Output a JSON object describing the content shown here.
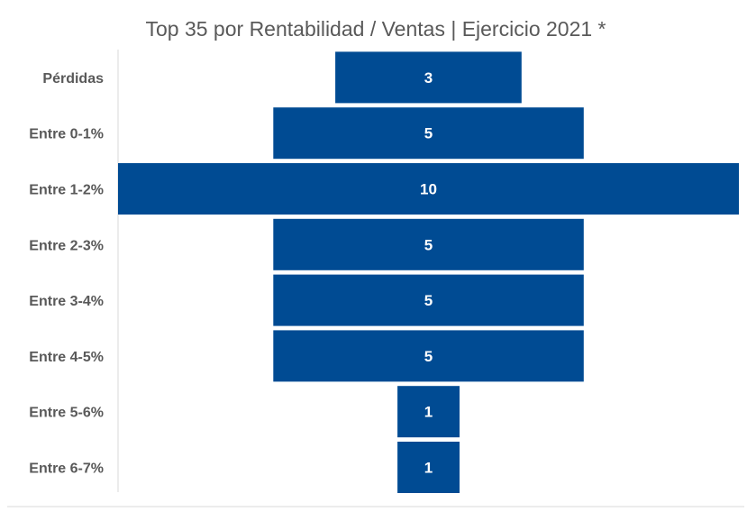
{
  "chart_data": {
    "type": "bar",
    "orientation": "horizontal",
    "style": "funnel-centered",
    "title": "Top 35 por Rentabilidad / Ventas | Ejercicio 2021 *",
    "categories": [
      "Pérdidas",
      "Entre 0-1%",
      "Entre 1-2%",
      "Entre 2-3%",
      "Entre 3-4%",
      "Entre 4-5%",
      "Entre 5-6%",
      "Entre 6-7%"
    ],
    "values": [
      3,
      5,
      10,
      5,
      5,
      5,
      1,
      1
    ],
    "data_labels": true,
    "xlim": [
      0,
      10
    ],
    "grid": false,
    "legend": "none",
    "colors": {
      "bar": "#004B93",
      "label_text": "#FFFFFF",
      "axis_text": "#595959",
      "title_text": "#595959",
      "axis_line": "#D9D9D9"
    }
  }
}
